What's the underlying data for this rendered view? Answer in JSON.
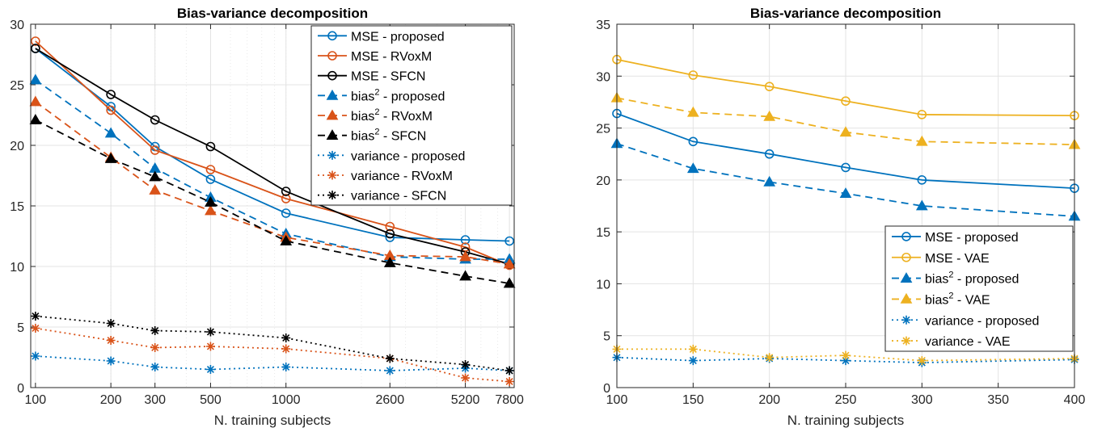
{
  "chart_data": [
    {
      "type": "line",
      "title": "Bias-variance decomposition",
      "xlabel": "N. training subjects",
      "ylabel": "",
      "xscale": "log",
      "x": [
        100,
        200,
        300,
        500,
        1000,
        2600,
        5200,
        7800
      ],
      "xticks": [
        "100",
        "200",
        "300",
        "500",
        "1000",
        "2600",
        "5200",
        "7800"
      ],
      "ylim": [
        0,
        30
      ],
      "yticks": [
        "0",
        "5",
        "10",
        "15",
        "20",
        "25",
        "30"
      ],
      "grid": true,
      "legend_position": "top-right",
      "series": [
        {
          "name": "MSE - proposed",
          "color": "#0072BD",
          "linestyle": "solid",
          "marker": "circle",
          "values": [
            28.0,
            23.2,
            19.9,
            17.2,
            14.4,
            12.4,
            12.2,
            12.1
          ]
        },
        {
          "name": "MSE - RVoxM",
          "color": "#D95319",
          "linestyle": "solid",
          "marker": "circle",
          "values": [
            28.6,
            22.9,
            19.6,
            18.0,
            15.6,
            13.3,
            11.6,
            10.1
          ]
        },
        {
          "name": "MSE - SFCN",
          "color": "#000000",
          "linestyle": "solid",
          "marker": "circle",
          "values": [
            28.0,
            24.2,
            22.1,
            19.9,
            16.2,
            12.7,
            11.2,
            10.2
          ]
        },
        {
          "name": "bias² - proposed",
          "color": "#0072BD",
          "linestyle": "dashed",
          "marker": "triangle",
          "values": [
            25.4,
            21.0,
            18.1,
            15.7,
            12.7,
            10.8,
            10.6,
            10.6
          ]
        },
        {
          "name": "bias² - RVoxM",
          "color": "#D95319",
          "linestyle": "dashed",
          "marker": "triangle",
          "values": [
            23.6,
            19.0,
            16.3,
            14.6,
            12.4,
            10.9,
            10.8,
            10.2
          ]
        },
        {
          "name": "bias² - SFCN",
          "color": "#000000",
          "linestyle": "dashed",
          "marker": "triangle",
          "values": [
            22.1,
            18.9,
            17.4,
            15.3,
            12.1,
            10.3,
            9.2,
            8.6
          ]
        },
        {
          "name": "variance - proposed",
          "color": "#0072BD",
          "linestyle": "dotted",
          "marker": "star",
          "values": [
            2.6,
            2.2,
            1.7,
            1.5,
            1.7,
            1.4,
            1.6,
            1.4
          ]
        },
        {
          "name": "variance - RVoxM",
          "color": "#D95319",
          "linestyle": "dotted",
          "marker": "star",
          "values": [
            4.9,
            3.9,
            3.3,
            3.4,
            3.2,
            2.4,
            0.8,
            0.5
          ]
        },
        {
          "name": "variance - SFCN",
          "color": "#000000",
          "linestyle": "dotted",
          "marker": "star",
          "values": [
            5.9,
            5.3,
            4.7,
            4.6,
            4.1,
            2.4,
            1.9,
            1.4
          ]
        }
      ]
    },
    {
      "type": "line",
      "title": "Bias-variance decomposition",
      "xlabel": "N. training subjects",
      "ylabel": "",
      "xscale": "linear",
      "x": [
        100,
        150,
        200,
        250,
        300,
        400
      ],
      "xlim": [
        100,
        400
      ],
      "xticks": [
        "100",
        "150",
        "200",
        "250",
        "300",
        "350",
        "400"
      ],
      "ylim": [
        0,
        35
      ],
      "yticks": [
        "0",
        "5",
        "10",
        "15",
        "20",
        "25",
        "30",
        "35"
      ],
      "grid": true,
      "legend_position": "bottom-right",
      "series": [
        {
          "name": "MSE - proposed",
          "color": "#0072BD",
          "linestyle": "solid",
          "marker": "circle",
          "values": [
            26.4,
            23.7,
            22.5,
            21.2,
            20.0,
            19.2
          ]
        },
        {
          "name": "MSE - VAE",
          "color": "#EDB120",
          "linestyle": "solid",
          "marker": "circle",
          "values": [
            31.6,
            30.1,
            29.0,
            27.6,
            26.3,
            26.2
          ]
        },
        {
          "name": "bias² - proposed",
          "color": "#0072BD",
          "linestyle": "dashed",
          "marker": "triangle",
          "values": [
            23.5,
            21.1,
            19.8,
            18.7,
            17.5,
            16.5
          ]
        },
        {
          "name": "bias² - VAE",
          "color": "#EDB120",
          "linestyle": "dashed",
          "marker": "triangle",
          "values": [
            27.9,
            26.5,
            26.1,
            24.6,
            23.7,
            23.4
          ]
        },
        {
          "name": "variance - proposed",
          "color": "#0072BD",
          "linestyle": "dotted",
          "marker": "star",
          "values": [
            2.9,
            2.6,
            2.8,
            2.6,
            2.4,
            2.7
          ]
        },
        {
          "name": "variance - VAE",
          "color": "#EDB120",
          "linestyle": "dotted",
          "marker": "star",
          "values": [
            3.7,
            3.7,
            2.9,
            3.1,
            2.6,
            2.8
          ]
        }
      ]
    }
  ]
}
